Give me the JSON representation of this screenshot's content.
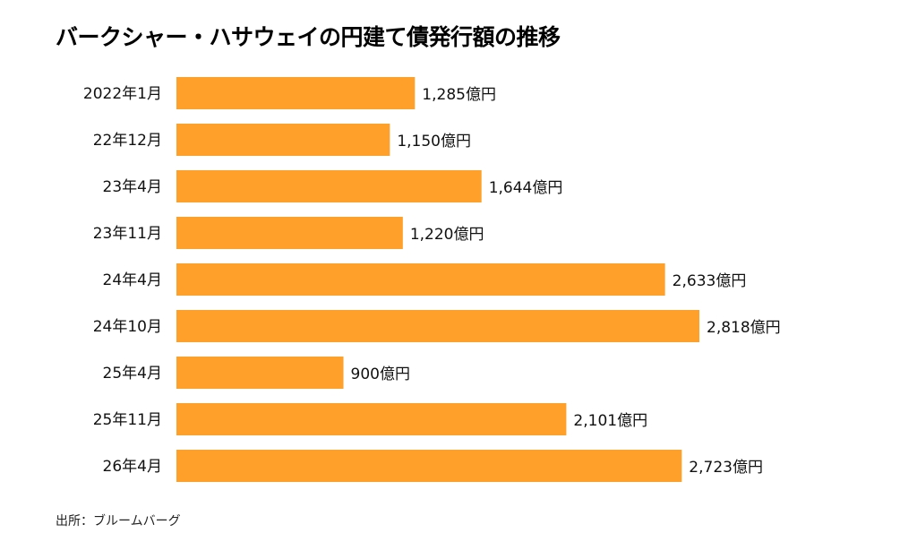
{
  "chart_data": {
    "type": "bar",
    "orientation": "horizontal",
    "title": "バークシャー・ハサウェイの円建て債発行額の推移",
    "categories": [
      "2022年1月",
      "22年12月",
      "23年4月",
      "23年11月",
      "24年4月",
      "24年10月",
      "25年4月",
      "25年11月",
      "26年4月"
    ],
    "values": [
      1285,
      1150,
      1644,
      1220,
      2633,
      2818,
      900,
      2101,
      2723
    ],
    "value_labels": [
      "1,285億円",
      "1,150億円",
      "1,644億円",
      "1,220億円",
      "2,633億円",
      "2,818億円",
      "900億円",
      "2,101億円",
      "2,723億円"
    ],
    "unit": "億円",
    "xlabel": "",
    "ylabel": "",
    "grid": false,
    "legend": "none",
    "bar_color": "#FFA02A"
  },
  "source": "出所：ブルームバーグ"
}
